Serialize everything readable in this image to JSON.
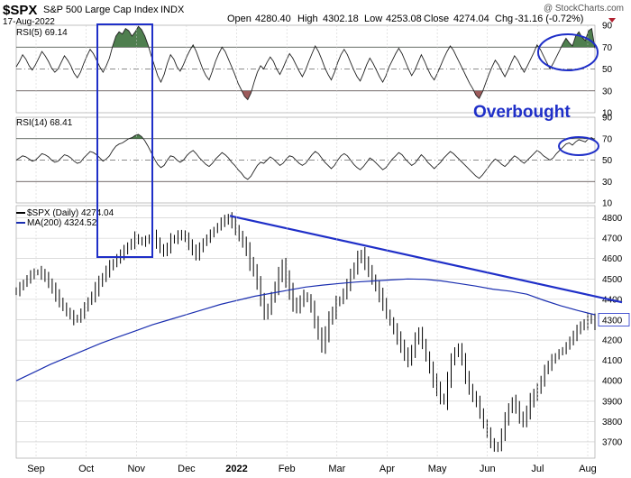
{
  "header": {
    "symbol": "$SPX",
    "name": "S&P 500 Large Cap Index",
    "exchange": "INDX",
    "date": "17-Aug-2022",
    "open_label": "Open",
    "open": "4280.40",
    "high_label": "High",
    "high": "4302.18",
    "low_label": "Low",
    "low": "4253.08",
    "close_label": "Close",
    "close": "4274.04",
    "chg_label": "Chg",
    "chg": "-31.16 (-0.72%)",
    "watermark": "@ StockCharts.com"
  },
  "annotation": {
    "text": "Overbought"
  },
  "colors": {
    "accent": "#1f2fc8",
    "price_line": "#000000",
    "ma_line": "#1b2fb0",
    "rsi_overbought_fill": "#4f7f4f",
    "rsi_oversold_fill": "#9c5b5b",
    "grid": "#c8c8c8"
  },
  "chart_data": [
    {
      "type": "line",
      "panel": "rsi5",
      "series": [
        {
          "name": "RSI(5)",
          "last": "69.14"
        }
      ],
      "ylim": [
        10,
        90
      ],
      "ticks": [
        10,
        30,
        50,
        70,
        90
      ],
      "levels": [
        30,
        50,
        70
      ],
      "values": [
        52,
        57,
        63,
        59,
        53,
        49,
        54,
        60,
        66,
        62,
        57,
        51,
        47,
        50,
        56,
        62,
        58,
        53,
        46,
        42,
        47,
        55,
        62,
        68,
        64,
        58,
        52,
        47,
        53,
        60,
        71,
        80,
        84,
        82,
        87,
        85,
        80,
        84,
        89,
        86,
        80,
        72,
        62,
        53,
        44,
        38,
        45,
        55,
        63,
        59,
        52,
        48,
        54,
        61,
        67,
        72,
        66,
        58,
        50,
        44,
        40,
        48,
        57,
        64,
        70,
        66,
        59,
        52,
        45,
        37,
        31,
        25,
        22,
        28,
        38,
        47,
        53,
        50,
        56,
        61,
        57,
        50,
        45,
        51,
        58,
        64,
        60,
        54,
        48,
        43,
        49,
        57,
        64,
        71,
        66,
        59,
        51,
        45,
        40,
        47,
        56,
        63,
        68,
        63,
        56,
        49,
        43,
        39,
        46,
        54,
        60,
        55,
        49,
        43,
        38,
        44,
        52,
        58,
        64,
        69,
        64,
        57,
        50,
        44,
        49,
        56,
        63,
        57,
        50,
        44,
        40,
        46,
        53,
        60,
        66,
        71,
        67,
        61,
        55,
        49,
        43,
        37,
        32,
        26,
        23,
        29,
        37,
        45,
        52,
        58,
        54,
        48,
        43,
        49,
        56,
        62,
        58,
        52,
        47,
        53,
        59,
        65,
        72,
        68,
        62,
        56,
        50,
        55,
        61,
        67,
        73,
        78,
        74,
        71,
        80,
        84,
        79,
        76,
        85,
        87,
        69
      ]
    },
    {
      "type": "line",
      "panel": "rsi14",
      "series": [
        {
          "name": "RSI(14)",
          "last": "68.41"
        }
      ],
      "ylim": [
        10,
        90
      ],
      "ticks": [
        10,
        30,
        50,
        70,
        90
      ],
      "levels": [
        30,
        50,
        70
      ],
      "values": [
        50,
        52,
        54,
        53,
        51,
        49,
        50,
        53,
        56,
        55,
        53,
        50,
        48,
        49,
        52,
        55,
        54,
        52,
        49,
        47,
        48,
        52,
        55,
        58,
        57,
        55,
        52,
        49,
        51,
        54,
        59,
        63,
        65,
        66,
        68,
        70,
        71,
        73,
        74,
        72,
        68,
        63,
        57,
        51,
        46,
        43,
        45,
        50,
        54,
        53,
        50,
        48,
        50,
        54,
        57,
        59,
        56,
        52,
        49,
        46,
        44,
        47,
        51,
        54,
        57,
        55,
        52,
        48,
        45,
        41,
        38,
        34,
        32,
        35,
        40,
        45,
        48,
        47,
        50,
        53,
        51,
        48,
        45,
        47,
        51,
        54,
        53,
        50,
        47,
        45,
        47,
        51,
        55,
        58,
        56,
        52,
        48,
        45,
        42,
        45,
        50,
        54,
        56,
        54,
        50,
        46,
        43,
        41,
        44,
        48,
        52,
        50,
        47,
        44,
        41,
        43,
        47,
        51,
        54,
        57,
        55,
        51,
        48,
        45,
        47,
        51,
        55,
        52,
        48,
        45,
        42,
        45,
        48,
        52,
        55,
        58,
        56,
        53,
        50,
        47,
        44,
        41,
        38,
        35,
        33,
        36,
        40,
        44,
        48,
        51,
        49,
        46,
        44,
        47,
        51,
        54,
        52,
        49,
        47,
        50,
        53,
        56,
        59,
        57,
        54,
        52,
        50,
        52,
        56,
        59,
        62,
        65,
        66,
        64,
        67,
        69,
        68,
        67,
        70,
        71,
        68.4
      ]
    },
    {
      "type": "line",
      "panel": "price",
      "title": "$SPX (Daily)",
      "xlabel": "",
      "ylabel": "",
      "ylim": [
        3620,
        4860
      ],
      "ticks": [
        3700,
        3800,
        3900,
        4000,
        4100,
        4200,
        4300,
        4400,
        4500,
        4600,
        4700,
        4800
      ],
      "x_tick_labels": [
        "Sep",
        "Oct",
        "Nov",
        "Dec",
        "2022",
        "Feb",
        "Mar",
        "Apr",
        "May",
        "Jun",
        "Jul",
        "Aug"
      ],
      "series": [
        {
          "name": "$SPX (Daily)",
          "last": "4274.04",
          "values": [
            4440,
            4460,
            4480,
            4500,
            4520,
            4530,
            4535,
            4525,
            4510,
            4480,
            4450,
            4420,
            4390,
            4360,
            4340,
            4320,
            4300,
            4310,
            4330,
            4360,
            4390,
            4420,
            4450,
            4480,
            4510,
            4540,
            4560,
            4580,
            4600,
            4620,
            4640,
            4660,
            4680,
            4700,
            4690,
            4680,
            4690,
            4700,
            4710,
            4680,
            4650,
            4630,
            4660,
            4690,
            4700,
            4710,
            4720,
            4700,
            4670,
            4640,
            4620,
            4650,
            4680,
            4700,
            4720,
            4740,
            4760,
            4780,
            4790,
            4796,
            4780,
            4740,
            4710,
            4680,
            4640,
            4580,
            4540,
            4480,
            4400,
            4330,
            4350,
            4410,
            4460,
            4520,
            4560,
            4500,
            4440,
            4380,
            4360,
            4390,
            4420,
            4400,
            4360,
            4290,
            4230,
            4170,
            4230,
            4300,
            4340,
            4380,
            4400,
            4430,
            4470,
            4520,
            4560,
            4600,
            4620,
            4580,
            4540,
            4500,
            4460,
            4420,
            4380,
            4330,
            4290,
            4250,
            4210,
            4170,
            4130,
            4100,
            4150,
            4200,
            4240,
            4180,
            4120,
            4060,
            4000,
            3960,
            3920,
            3900,
            4000,
            4100,
            4140,
            4160,
            4100,
            4020,
            3960,
            3920,
            3900,
            3840,
            3790,
            3740,
            3700,
            3670,
            3680,
            3740,
            3810,
            3860,
            3900,
            3870,
            3820,
            3800,
            3850,
            3900,
            3930,
            3960,
            4000,
            4050,
            4080,
            4100,
            4120,
            4140,
            4150,
            4170,
            4200,
            4220,
            4250,
            4270,
            4280,
            4300,
            4305,
            4274
          ]
        },
        {
          "name": "MA(200)",
          "last": "4324.52",
          "values": [
            4000,
            4040,
            4080,
            4115,
            4150,
            4185,
            4215,
            4245,
            4275,
            4300,
            4325,
            4350,
            4375,
            4395,
            4415,
            4430,
            4445,
            4460,
            4470,
            4478,
            4485,
            4490,
            4495,
            4500,
            4498,
            4490,
            4478,
            4465,
            4450,
            4440,
            4425,
            4395,
            4368,
            4345,
            4324
          ]
        }
      ],
      "trendline": {
        "from": [
          0,
          4810
        ],
        "to": [
          1,
          4350
        ]
      },
      "resistance_label": "4300"
    }
  ]
}
